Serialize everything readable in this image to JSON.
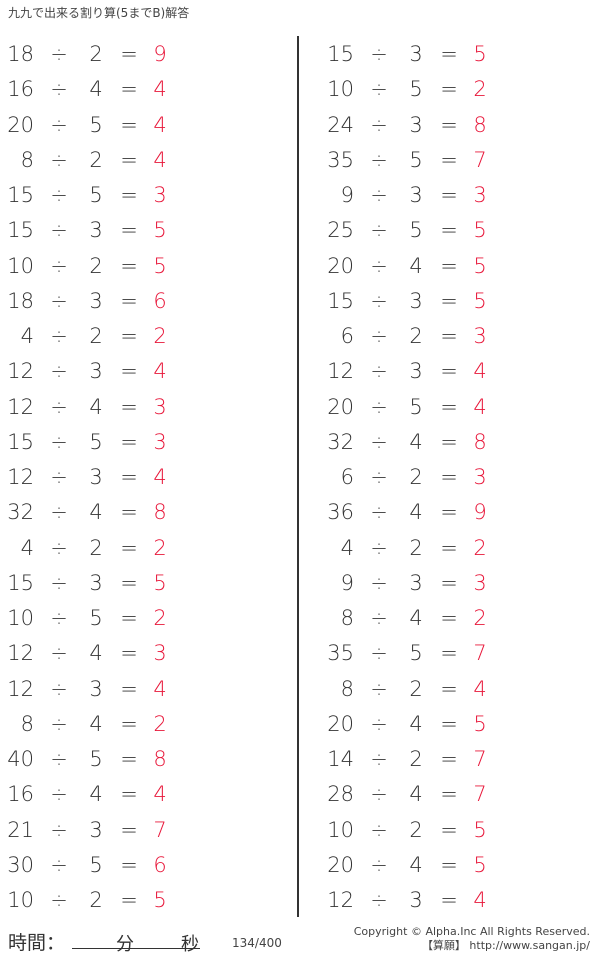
{
  "title": "九九で出来る割り算(5までB)解答",
  "operator": "÷",
  "equals": "=",
  "colors": {
    "answer": "#e8173a",
    "text": "#333333"
  },
  "left_column": [
    {
      "dividend": "18",
      "divisor": "2",
      "answer": "9"
    },
    {
      "dividend": "16",
      "divisor": "4",
      "answer": "4"
    },
    {
      "dividend": "20",
      "divisor": "5",
      "answer": "4"
    },
    {
      "dividend": "8",
      "divisor": "2",
      "answer": "4"
    },
    {
      "dividend": "15",
      "divisor": "5",
      "answer": "3"
    },
    {
      "dividend": "15",
      "divisor": "3",
      "answer": "5"
    },
    {
      "dividend": "10",
      "divisor": "2",
      "answer": "5"
    },
    {
      "dividend": "18",
      "divisor": "3",
      "answer": "6"
    },
    {
      "dividend": "4",
      "divisor": "2",
      "answer": "2"
    },
    {
      "dividend": "12",
      "divisor": "3",
      "answer": "4"
    },
    {
      "dividend": "12",
      "divisor": "4",
      "answer": "3"
    },
    {
      "dividend": "15",
      "divisor": "5",
      "answer": "3"
    },
    {
      "dividend": "12",
      "divisor": "3",
      "answer": "4"
    },
    {
      "dividend": "32",
      "divisor": "4",
      "answer": "8"
    },
    {
      "dividend": "4",
      "divisor": "2",
      "answer": "2"
    },
    {
      "dividend": "15",
      "divisor": "3",
      "answer": "5"
    },
    {
      "dividend": "10",
      "divisor": "5",
      "answer": "2"
    },
    {
      "dividend": "12",
      "divisor": "4",
      "answer": "3"
    },
    {
      "dividend": "12",
      "divisor": "3",
      "answer": "4"
    },
    {
      "dividend": "8",
      "divisor": "4",
      "answer": "2"
    },
    {
      "dividend": "40",
      "divisor": "5",
      "answer": "8"
    },
    {
      "dividend": "16",
      "divisor": "4",
      "answer": "4"
    },
    {
      "dividend": "21",
      "divisor": "3",
      "answer": "7"
    },
    {
      "dividend": "30",
      "divisor": "5",
      "answer": "6"
    },
    {
      "dividend": "10",
      "divisor": "2",
      "answer": "5"
    }
  ],
  "right_column": [
    {
      "dividend": "15",
      "divisor": "3",
      "answer": "5"
    },
    {
      "dividend": "10",
      "divisor": "5",
      "answer": "2"
    },
    {
      "dividend": "24",
      "divisor": "3",
      "answer": "8"
    },
    {
      "dividend": "35",
      "divisor": "5",
      "answer": "7"
    },
    {
      "dividend": "9",
      "divisor": "3",
      "answer": "3"
    },
    {
      "dividend": "25",
      "divisor": "5",
      "answer": "5"
    },
    {
      "dividend": "20",
      "divisor": "4",
      "answer": "5"
    },
    {
      "dividend": "15",
      "divisor": "3",
      "answer": "5"
    },
    {
      "dividend": "6",
      "divisor": "2",
      "answer": "3"
    },
    {
      "dividend": "12",
      "divisor": "3",
      "answer": "4"
    },
    {
      "dividend": "20",
      "divisor": "5",
      "answer": "4"
    },
    {
      "dividend": "32",
      "divisor": "4",
      "answer": "8"
    },
    {
      "dividend": "6",
      "divisor": "2",
      "answer": "3"
    },
    {
      "dividend": "36",
      "divisor": "4",
      "answer": "9"
    },
    {
      "dividend": "4",
      "divisor": "2",
      "answer": "2"
    },
    {
      "dividend": "9",
      "divisor": "3",
      "answer": "3"
    },
    {
      "dividend": "8",
      "divisor": "4",
      "answer": "2"
    },
    {
      "dividend": "35",
      "divisor": "5",
      "answer": "7"
    },
    {
      "dividend": "8",
      "divisor": "2",
      "answer": "4"
    },
    {
      "dividend": "20",
      "divisor": "4",
      "answer": "5"
    },
    {
      "dividend": "14",
      "divisor": "2",
      "answer": "7"
    },
    {
      "dividend": "28",
      "divisor": "4",
      "answer": "7"
    },
    {
      "dividend": "10",
      "divisor": "2",
      "answer": "5"
    },
    {
      "dividend": "20",
      "divisor": "4",
      "answer": "5"
    },
    {
      "dividend": "12",
      "divisor": "3",
      "answer": "4"
    }
  ],
  "footer": {
    "time_label": "時間：",
    "minutes_label": "分",
    "seconds_label": "秒",
    "page": "134/400",
    "copyright": "Copyright © Alpha.Inc All Rights Reserved.",
    "site": "【算願】 http://www.sangan.jp/"
  }
}
